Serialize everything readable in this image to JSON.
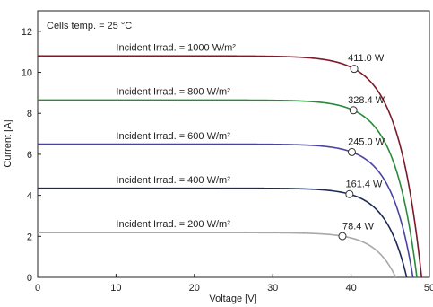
{
  "chart_data": {
    "type": "line",
    "annotation": "Cells temp. = 25 °C",
    "xlabel": "Voltage [V]",
    "ylabel": "Current [A]",
    "xlim": [
      0,
      50
    ],
    "ylim": [
      0,
      13
    ],
    "xticks": [
      0,
      10,
      20,
      30,
      40,
      50
    ],
    "yticks": [
      0,
      2,
      4,
      6,
      8,
      10,
      12
    ],
    "grid": false,
    "series": [
      {
        "label": "Incident Irrad. = 1000 W/m²",
        "color": "#7a1a2a",
        "isc": 10.8,
        "voc": 49.0,
        "mpp": {
          "v": 40.4,
          "i": 10.17,
          "label": "411.0 W"
        },
        "label_pos": {
          "v": 10.0,
          "i": 11.05
        },
        "mpp_label_pos": {
          "v": 39.6,
          "i": 10.55
        }
      },
      {
        "label": "Incident Irrad. = 800 W/m²",
        "color": "#2a8a3a",
        "isc": 8.65,
        "voc": 48.4,
        "mpp": {
          "v": 40.3,
          "i": 8.15,
          "label": "328.4 W"
        },
        "label_pos": {
          "v": 10.0,
          "i": 8.9
        },
        "mpp_label_pos": {
          "v": 39.6,
          "i": 8.5
        }
      },
      {
        "label": "Incident Irrad. = 600 W/m²",
        "color": "#4a44a0",
        "isc": 6.5,
        "voc": 47.9,
        "mpp": {
          "v": 40.1,
          "i": 6.11,
          "label": "245.0 W"
        },
        "label_pos": {
          "v": 10.0,
          "i": 6.75
        },
        "mpp_label_pos": {
          "v": 39.6,
          "i": 6.45
        }
      },
      {
        "label": "Incident Irrad. = 400 W/m²",
        "color": "#1f2a55",
        "isc": 4.35,
        "voc": 47.1,
        "mpp": {
          "v": 39.8,
          "i": 4.06,
          "label": "161.4 W"
        },
        "label_pos": {
          "v": 10.0,
          "i": 4.6
        },
        "mpp_label_pos": {
          "v": 39.3,
          "i": 4.4
        }
      },
      {
        "label": "Incident Irrad. = 200 W/m²",
        "color": "#a8a8a8",
        "isc": 2.18,
        "voc": 45.7,
        "mpp": {
          "v": 38.9,
          "i": 2.01,
          "label": "78.4 W"
        },
        "label_pos": {
          "v": 10.0,
          "i": 2.45
        },
        "mpp_label_pos": {
          "v": 38.9,
          "i": 2.35
        }
      }
    ]
  }
}
